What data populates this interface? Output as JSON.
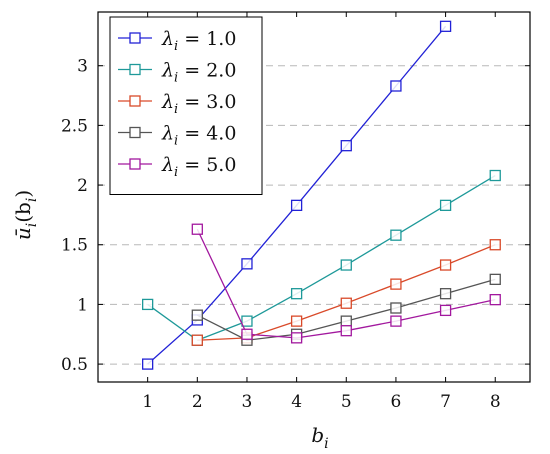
{
  "chart_data": {
    "type": "line",
    "title": "",
    "xlabel": "b",
    "xlabel_sub": "i",
    "ylabel": "ū",
    "ylabel_sub": "i",
    "ylabel_arg": "(b",
    "ylabel_arg_sub": "i",
    "ylabel_close": ")",
    "xlim": [
      0,
      8.7
    ],
    "ylim": [
      0.35,
      3.45
    ],
    "x_ticks": [
      1,
      2,
      3,
      4,
      5,
      6,
      7,
      8
    ],
    "y_ticks": [
      0.5,
      1,
      1.5,
      2,
      2.5,
      3
    ],
    "y_tick_labels": [
      "0.5",
      "1",
      "1.5",
      "2",
      "2.5",
      "3"
    ],
    "grid": "horizontal dashed",
    "legend_position": "top-left",
    "series": [
      {
        "name": "λi = 1.0",
        "color": "#2222d6",
        "x": [
          1,
          2,
          3,
          4,
          5,
          6,
          7
        ],
        "y": [
          0.5,
          0.87,
          1.34,
          1.83,
          2.33,
          2.83,
          3.33
        ]
      },
      {
        "name": "λi = 2.0",
        "color": "#1e9999",
        "x": [
          1,
          2,
          3,
          4,
          5,
          6,
          7,
          8
        ],
        "y": [
          1.0,
          0.7,
          0.86,
          1.09,
          1.33,
          1.58,
          1.83,
          2.08
        ]
      },
      {
        "name": "λi = 3.0",
        "color": "#d94a2a",
        "x": [
          2,
          3,
          4,
          5,
          6,
          7,
          8
        ],
        "y": [
          0.7,
          0.72,
          0.86,
          1.01,
          1.17,
          1.33,
          1.5
        ]
      },
      {
        "name": "λi = 4.0",
        "color": "#555555",
        "x": [
          2,
          3,
          4,
          5,
          6,
          7,
          8
        ],
        "y": [
          0.91,
          0.7,
          0.75,
          0.86,
          0.97,
          1.09,
          1.21
        ]
      },
      {
        "name": "λi = 5.0",
        "color": "#a2189e",
        "x": [
          2,
          3,
          4,
          5,
          6,
          7,
          8
        ],
        "y": [
          1.63,
          0.75,
          0.72,
          0.78,
          0.86,
          0.95,
          1.04
        ]
      }
    ]
  }
}
